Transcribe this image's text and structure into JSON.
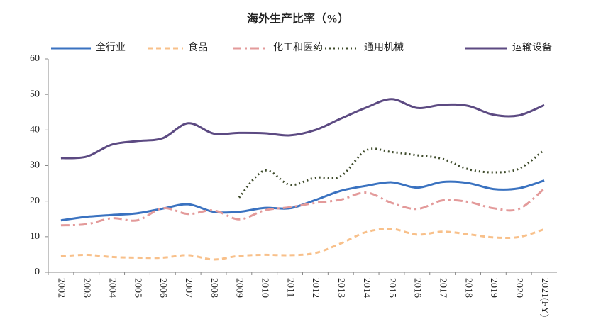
{
  "chart_data": {
    "type": "line",
    "title": "海外生产比率（%）",
    "categories": [
      "2002",
      "2003",
      "2004",
      "2005",
      "2006",
      "2007",
      "2008",
      "2009",
      "2010",
      "2011",
      "2012",
      "2013",
      "2014",
      "2015",
      "2016",
      "2017",
      "2018",
      "2019",
      "2020",
      "2021(FY)"
    ],
    "series": [
      {
        "name": "全行业",
        "color": "#3a72c0",
        "values": [
          14.6,
          15.6,
          16.1,
          16.6,
          17.9,
          19.1,
          17.0,
          17.0,
          18.1,
          18.0,
          20.3,
          22.9,
          24.3,
          25.3,
          23.8,
          25.4,
          25.1,
          23.4,
          23.6,
          25.8
        ]
      },
      {
        "name": "食品",
        "color": "#f8c08a",
        "values": [
          4.5,
          4.9,
          4.3,
          4.1,
          4.1,
          4.8,
          3.6,
          4.6,
          4.9,
          4.8,
          5.4,
          8.1,
          11.3,
          12.2,
          10.6,
          11.4,
          10.7,
          9.8,
          9.9,
          12.1
        ]
      },
      {
        "name": "化工和医药",
        "color": "#e39a9a",
        "values": [
          13.2,
          13.5,
          15.2,
          14.6,
          18.0,
          16.4,
          17.4,
          14.9,
          17.4,
          18.3,
          19.5,
          20.4,
          22.4,
          19.5,
          17.8,
          20.2,
          19.8,
          18.0,
          17.8,
          23.5
        ]
      },
      {
        "name": "通用机械",
        "color": "#3d4a2a",
        "values": [
          null,
          null,
          null,
          null,
          null,
          null,
          null,
          21.0,
          28.6,
          24.6,
          26.6,
          27.0,
          34.3,
          33.8,
          32.9,
          31.9,
          29.0,
          28.1,
          29.1,
          34.4
        ]
      },
      {
        "name": "运输设备",
        "color": "#5c4a82",
        "values": [
          32.1,
          32.5,
          35.9,
          36.9,
          37.7,
          41.9,
          39.0,
          39.2,
          39.1,
          38.5,
          40.0,
          43.2,
          46.3,
          48.7,
          46.2,
          47.1,
          46.8,
          44.3,
          44.1,
          47.0
        ]
      }
    ],
    "ylim": [
      0,
      60
    ],
    "yticks": [
      0,
      10,
      20,
      30,
      40,
      50,
      60
    ]
  }
}
